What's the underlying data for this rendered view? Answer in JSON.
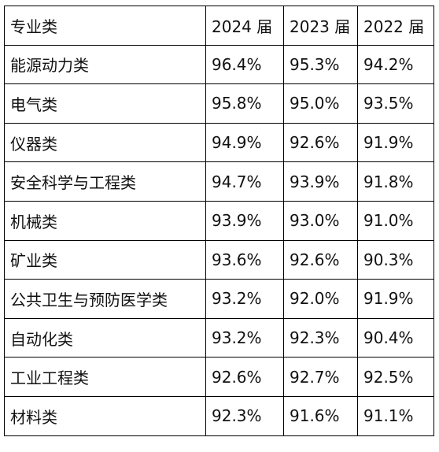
{
  "table": {
    "headers": [
      "专业类",
      "2024 届",
      "2023 届",
      "2022 届"
    ],
    "rows": [
      [
        "能源动力类",
        "96.4%",
        "95.3%",
        "94.2%"
      ],
      [
        "电气类",
        "95.8%",
        "95.0%",
        "93.5%"
      ],
      [
        "仪器类",
        "94.9%",
        "92.6%",
        "91.9%"
      ],
      [
        "安全科学与工程类",
        "94.7%",
        "93.9%",
        "91.8%"
      ],
      [
        "机械类",
        "93.9%",
        "93.0%",
        "91.0%"
      ],
      [
        "矿业类",
        "93.6%",
        "92.6%",
        "90.3%"
      ],
      [
        "公共卫生与预防医学类",
        "93.2%",
        "92.0%",
        "91.9%"
      ],
      [
        "自动化类",
        "93.2%",
        "92.3%",
        "90.4%"
      ],
      [
        "工业工程类",
        "92.6%",
        "92.7%",
        "92.5%"
      ],
      [
        "材料类",
        "92.3%",
        "91.6%",
        "91.1%"
      ]
    ]
  }
}
